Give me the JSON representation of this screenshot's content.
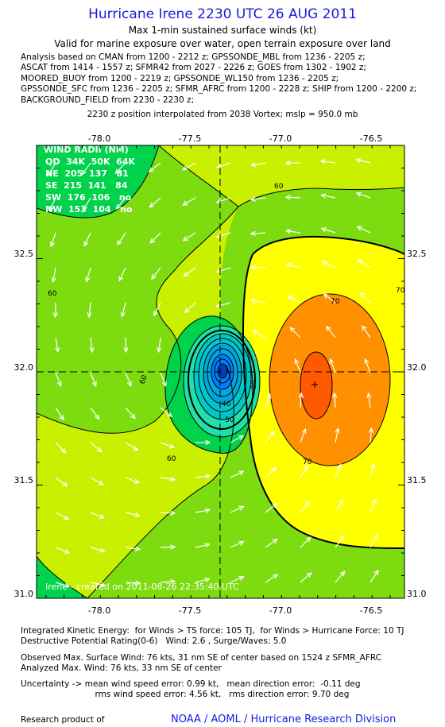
{
  "header": {
    "title": "Hurricane Irene 2230 UTC 26 AUG 2011",
    "subtitle1": "Max 1-min sustained surface winds (kt)",
    "subtitle2": "Valid for marine exposure over water, open terrain exposure over land",
    "analysis_lines": [
      "Analysis based on CMAN from 1200 - 2212 z; GPSSONDE_MBL from 1236 - 2205 z;",
      "ASCAT from 1414 - 1557 z; SFMR42 from 2027 - 2226 z; GOES from 1302 - 1902 z;",
      "MOORED_BUOY from 1200 - 2219 z; GPSSONDE_WL150 from 1236 - 2205 z;",
      "GPSSONDE_SFC from 1236 - 2205 z; SFMR_AFRC from 1200 - 2228 z; SHIP from 1200 - 2200 z;",
      "BACKGROUND_FIELD from 2230 - 2230 z;"
    ],
    "position_note": "2230 z position interpolated from 2038 Vortex; mslp = 950.0 mb"
  },
  "map": {
    "lon_ticks": [
      "-78.0",
      "-77.5",
      "-77.0",
      "-76.5"
    ],
    "lat_ticks": [
      "32.5",
      "32.0",
      "31.5",
      "31.0"
    ],
    "contour_labels": [
      "60",
      "60",
      "60",
      "70",
      "70",
      "80",
      "70",
      "60",
      "50",
      "40"
    ],
    "credit": "Irene - created on 2011-08-26 22:35:40 UTC",
    "wind_radii": {
      "title": "WIND RADII (NM)",
      "rows": [
        "QD  34K  50K  64K",
        "NE  205  137   81",
        "SE  215  141   84",
        "SW  176  106   no",
        "NW  153  104   no"
      ]
    },
    "colors": {
      "c40": "#00b4b4",
      "c50": "#00d24c",
      "c60": "#7cdc10",
      "c65": "#c8f000",
      "c70": "#ffff00",
      "c75": "#ff9000",
      "c80": "#ff5a00"
    }
  },
  "footer": {
    "ike": "Integrated Kinetic Energy:  for Winds > TS force: 105 TJ,  for Winds > Hurricane Force: 10 TJ",
    "dpr": "Destructive Potential Rating(0-6)   Wind: 2.6 , Surge/Waves: 5.0",
    "observed": "Observed Max. Surface Wind: 76 kts, 31 nm SE of center based on 1524 z SFMR_AFRC",
    "analyzed": "Analyzed Max. Wind: 76 kts, 33 nm SE of center",
    "uncert1": "Uncertainty -> mean wind speed error: 0.99 kt,   mean direction error:  -0.11 deg",
    "uncert2": "                            rms wind speed error: 4.56 kt,   rms direction error: 9.70 deg",
    "research": "Research product of",
    "org": "NOAA / AOML / Hurricane Research Division"
  }
}
